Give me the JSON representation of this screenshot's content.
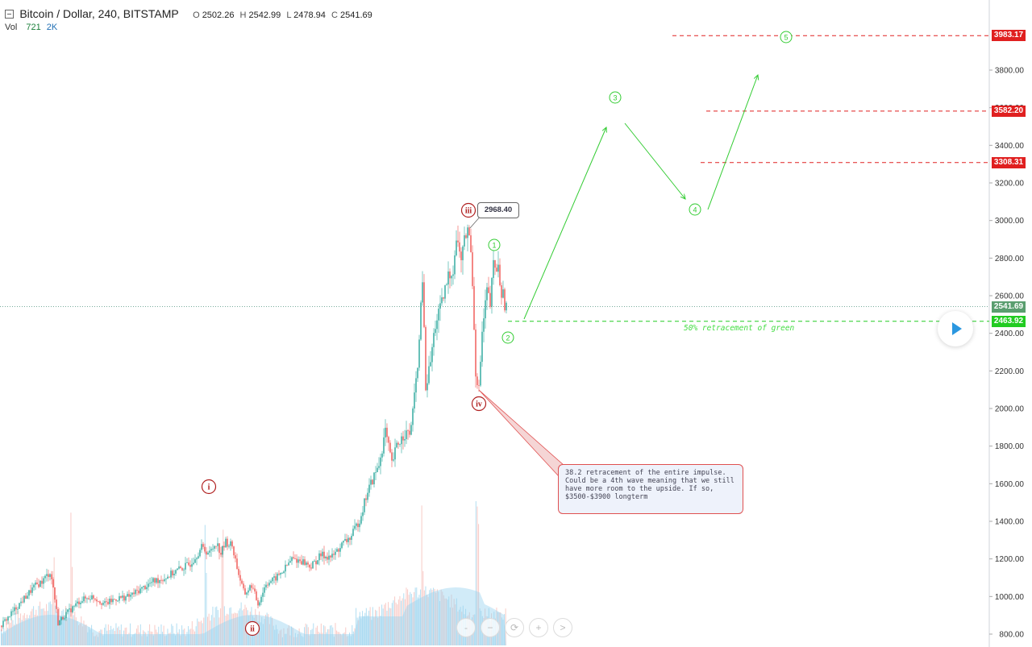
{
  "header": {
    "title": "Bitcoin / Dollar, 240, BITSTAMP",
    "o_label": "O",
    "o_value": "2502.26",
    "h_label": "H",
    "h_value": "2542.99",
    "l_label": "L",
    "l_value": "2478.94",
    "c_label": "C",
    "c_value": "2541.69"
  },
  "volume": {
    "label": "Vol",
    "value1": "721",
    "value2": "2K"
  },
  "chart_data": {
    "type": "candlestick",
    "title": "Bitcoin / Dollar, 240, BITSTAMP",
    "ylim": [
      720,
      4150
    ],
    "y_ticks": [
      "800.00",
      "1000.00",
      "1200.00",
      "1400.00",
      "1600.00",
      "1800.00",
      "2000.00",
      "2200.00",
      "2400.00",
      "2600.00",
      "2800.00",
      "3000.00",
      "3200.00",
      "3400.00",
      "3600.00",
      "3800.00"
    ],
    "price_path": [
      [
        0,
        840
      ],
      [
        10,
        890
      ],
      [
        22,
        950
      ],
      [
        32,
        1000
      ],
      [
        42,
        1050
      ],
      [
        52,
        1080
      ],
      [
        62,
        1130
      ],
      [
        66,
        1050
      ],
      [
        72,
        860
      ],
      [
        80,
        900
      ],
      [
        90,
        940
      ],
      [
        100,
        980
      ],
      [
        115,
        1000
      ],
      [
        130,
        960
      ],
      [
        145,
        990
      ],
      [
        160,
        1000
      ],
      [
        175,
        1040
      ],
      [
        190,
        1080
      ],
      [
        205,
        1100
      ],
      [
        220,
        1140
      ],
      [
        235,
        1170
      ],
      [
        250,
        1260
      ],
      [
        260,
        1230
      ],
      [
        268,
        1290
      ],
      [
        274,
        1230
      ],
      [
        280,
        1290
      ],
      [
        288,
        1270
      ],
      [
        296,
        1120
      ],
      [
        303,
        1010
      ],
      [
        312,
        1060
      ],
      [
        320,
        960
      ],
      [
        330,
        1070
      ],
      [
        340,
        1090
      ],
      [
        352,
        1140
      ],
      [
        362,
        1200
      ],
      [
        374,
        1190
      ],
      [
        386,
        1160
      ],
      [
        398,
        1220
      ],
      [
        412,
        1210
      ],
      [
        425,
        1280
      ],
      [
        436,
        1320
      ],
      [
        446,
        1410
      ],
      [
        456,
        1560
      ],
      [
        462,
        1620
      ],
      [
        470,
        1700
      ],
      [
        478,
        1880
      ],
      [
        486,
        1700
      ],
      [
        492,
        1800
      ],
      [
        502,
        1870
      ],
      [
        508,
        1860
      ],
      [
        514,
        2050
      ],
      [
        520,
        2350
      ],
      [
        524,
        2700
      ],
      [
        528,
        2100
      ],
      [
        534,
        2250
      ],
      [
        540,
        2450
      ],
      [
        548,
        2550
      ],
      [
        556,
        2700
      ],
      [
        562,
        2750
      ],
      [
        566,
        2900
      ],
      [
        572,
        2800
      ],
      [
        580,
        2968
      ],
      [
        585,
        2800
      ],
      [
        590,
        2200
      ],
      [
        594,
        2100
      ],
      [
        598,
        2400
      ],
      [
        604,
        2620
      ],
      [
        608,
        2550
      ],
      [
        612,
        2760
      ],
      [
        618,
        2740
      ],
      [
        622,
        2620
      ],
      [
        628,
        2540
      ]
    ],
    "volume_spikes_x": [
      66,
      88,
      255,
      275,
      524,
      590,
      592
    ],
    "last_price": "2541.69",
    "levels": [
      {
        "price": 3983.17,
        "label": "3983.17",
        "color": "#e02020"
      },
      {
        "price": 3582.2,
        "label": "3582.20",
        "color": "#e02020"
      },
      {
        "price": 3308.31,
        "label": "3308.31",
        "color": "#e02020"
      },
      {
        "price": 2463.92,
        "label": "2463.92",
        "color": "#22cc22"
      }
    ],
    "current_price_label": "2541.69",
    "high_label": "2968.40",
    "red_wave_labels": [
      "i",
      "ii",
      "iii",
      "iv"
    ],
    "green_wave_labels": [
      "1",
      "2",
      "3",
      "4",
      "5"
    ],
    "fib_text": "50% retracement of green",
    "callout_text": "38.2 retracement of the entire impulse. Could be a 4th wave meaning that we still have more room to the upside. If so, $3500-$3900 longterm"
  },
  "colors": {
    "up": "#26a69a",
    "down": "#ef5350",
    "red_wave": "#b02020",
    "green_wave": "#33cc33",
    "level_red": "#e02020",
    "level_green": "#22cc22",
    "price_tag": "#5a9e6f"
  },
  "nav": [
    "-",
    "−",
    "⟳",
    "+",
    ">"
  ]
}
